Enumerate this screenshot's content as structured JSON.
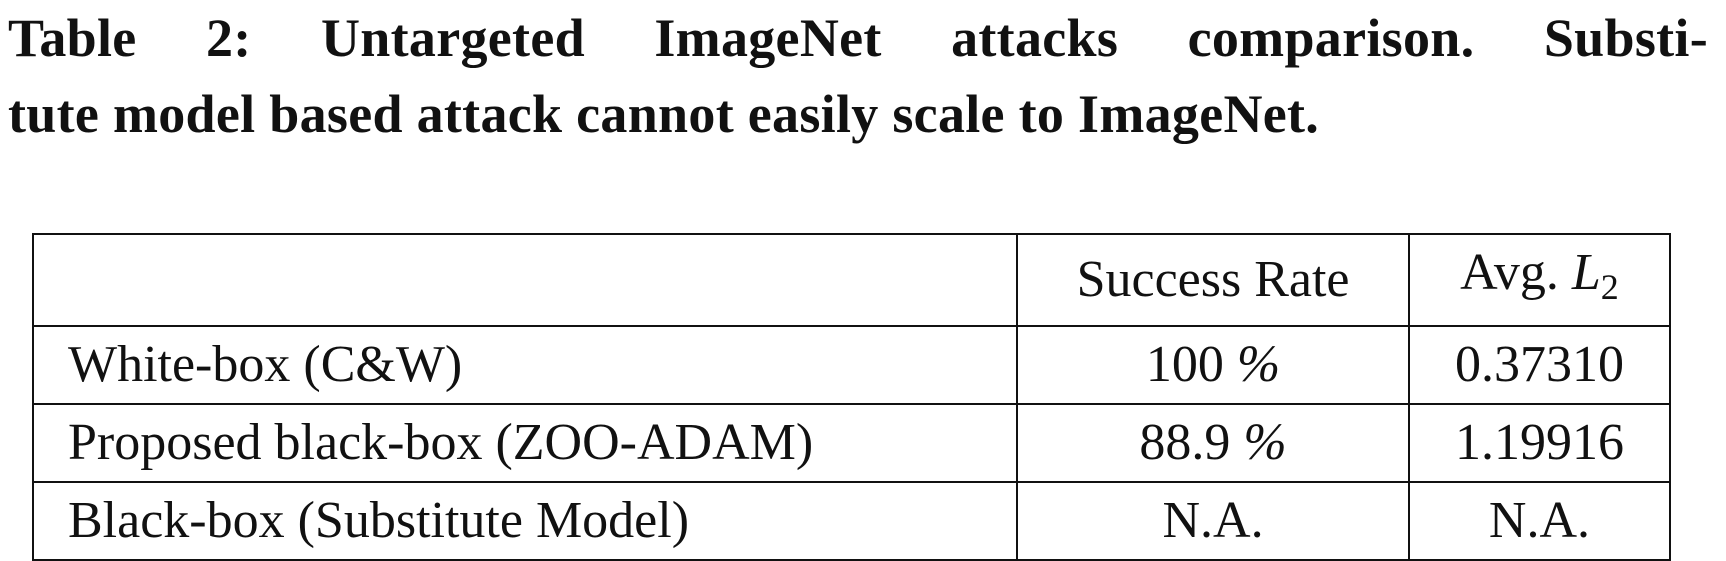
{
  "caption": {
    "line1": "Table 2: Untargeted ImageNet attacks comparison. Substi-",
    "line2": "tute model based attack cannot easily scale to ImageNet."
  },
  "table": {
    "headers": {
      "method": "",
      "success_rate": "Success Rate",
      "avg_l2_prefix": "Avg.",
      "avg_l2_var": "L",
      "avg_l2_sub": "2"
    },
    "rows": [
      {
        "method": "White-box (C&W)",
        "rate_value": "100",
        "rate_unit": "%",
        "avg_l2": "0.37310"
      },
      {
        "method": "Proposed black-box (ZOO-ADAM)",
        "rate_value": "88.9",
        "rate_unit": "%",
        "avg_l2": "1.19916"
      },
      {
        "method": "Black-box (Substitute Model)",
        "rate_value": "N.A.",
        "rate_unit": "",
        "avg_l2": "N.A."
      }
    ]
  }
}
